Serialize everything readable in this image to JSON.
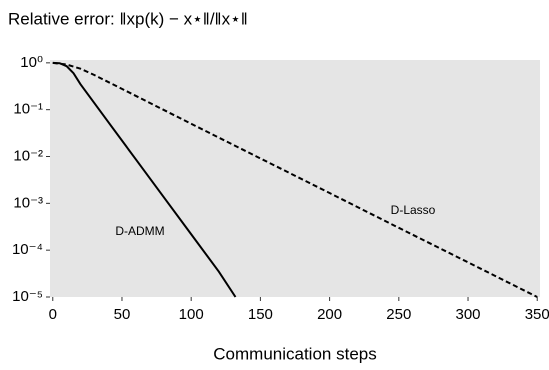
{
  "chart_data": {
    "type": "line",
    "title": "Relative error: ‖xp(k) − x⋆‖/‖x⋆‖",
    "x_label": "Communication steps",
    "log_y": true,
    "series": [
      {
        "name": "D-ADMM",
        "color": "#000000",
        "dash": "solid",
        "x": [
          0,
          5,
          10,
          15,
          20,
          40,
          60,
          80,
          100,
          120,
          132
        ],
        "values": [
          1,
          0.98,
          0.85,
          0.6,
          0.35,
          0.055,
          0.0087,
          0.00138,
          0.000219,
          3.47e-05,
          1e-05
        ]
      },
      {
        "name": "D-Lasso",
        "color": "#000000",
        "dash": "dashed",
        "x": [
          0,
          10,
          20,
          30,
          50,
          100,
          150,
          200,
          250,
          300,
          350
        ],
        "values": [
          1,
          0.92,
          0.75,
          0.55,
          0.278,
          0.05,
          0.0091,
          0.00166,
          0.0003,
          5.5e-05,
          1e-05
        ]
      }
    ],
    "xlim": [
      -2,
      352
    ],
    "xticks": [
      0,
      50,
      100,
      150,
      200,
      250,
      300,
      350
    ],
    "ylim": [
      1e-05,
      1.15
    ],
    "yticks": [
      {
        "value": 1,
        "label": "10⁰"
      },
      {
        "value": 0.1,
        "label": "10⁻¹"
      },
      {
        "value": 0.01,
        "label": "10⁻²"
      },
      {
        "value": 0.001,
        "label": "10⁻³"
      },
      {
        "value": 0.0001,
        "label": "10⁻⁴"
      },
      {
        "value": 1e-05,
        "label": "10⁻⁵"
      }
    ],
    "background": "#e5e5e5"
  }
}
